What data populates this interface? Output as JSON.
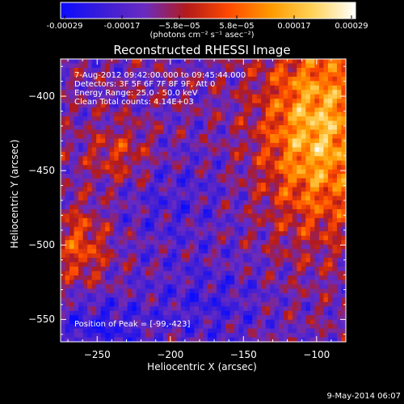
{
  "colorbar": {
    "ticks": [
      "-0.00029",
      "-0.00017",
      "−5.8e−05",
      "5.8e−05",
      "0.00017",
      "0.00029"
    ],
    "units": "(photons cm⁻² s⁻¹ asec⁻²)",
    "colors": [
      "#0b0bff",
      "#3b1dd8",
      "#6a2bc0",
      "#b41a1a",
      "#ff4a00",
      "#ff9a00",
      "#ffd35a",
      "#ffffff"
    ]
  },
  "chart_data": {
    "type": "heatmap",
    "title": "Reconstructed RHESSI Image",
    "xlabel": "Heliocentric X (arcsec)",
    "ylabel": "Heliocentric Y (arcsec)",
    "xlim": [
      -275,
      -80
    ],
    "ylim": [
      -565,
      -375
    ],
    "xticks": [
      -250,
      -200,
      -150,
      -100
    ],
    "yticks": [
      -400,
      -450,
      -500,
      -550
    ],
    "value_range": [
      -0.00029,
      0.00029
    ],
    "peak": [
      -99,
      -423
    ],
    "info_lines": [
      "7-Aug-2012 09:42:00.000 to 09:45:44.000",
      "Detectors: 3F 5F 6F 7F 8F 9F, Att 0",
      "Energy Range: 25.0 - 50.0 keV",
      "Clean     Total counts: 4.14E+03"
    ],
    "peak_label": "Position of Peak = [-99,-423]"
  },
  "timestamp": "9-May-2014 06:07"
}
